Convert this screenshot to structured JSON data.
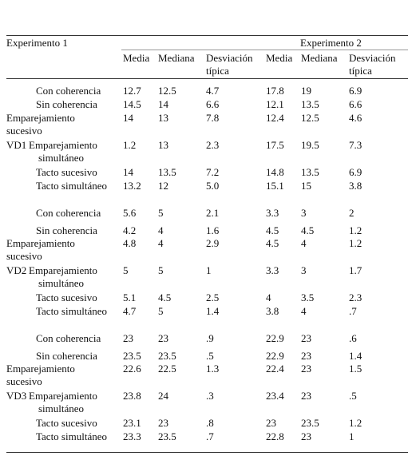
{
  "table": {
    "header": {
      "group_1": "Experimento 1",
      "group_2": "Experimento 2",
      "columns": [
        "Media",
        "Mediana",
        "Desviación típica",
        "Media",
        "Mediana",
        "Desviación típica"
      ]
    },
    "rows": [
      {
        "label": "Con coherencia",
        "cells": [
          "12.7",
          "12.5",
          "4.7",
          "17.8",
          "19",
          "6.9"
        ]
      },
      {
        "label": "Sin coherencia",
        "cells": [
          "14.5",
          "14",
          "6.6",
          "12.1",
          "13.5",
          "6.6"
        ]
      },
      {
        "label": "Emparejamiento sucesivo",
        "cells": [
          "14",
          "13",
          "7.8",
          "12.4",
          "12.5",
          "4.6"
        ]
      },
      {
        "group": "VD1",
        "label": "Emparejamiento simultáneo",
        "cells": [
          "1.2",
          "13",
          "2.3",
          "17.5",
          "19.5",
          "7.3"
        ]
      },
      {
        "label": "Tacto sucesivo",
        "cells": [
          "14",
          "13.5",
          "7.2",
          "14.8",
          "13.5",
          "6.9"
        ]
      },
      {
        "label": "Tacto simultáneo",
        "cells": [
          "13.2",
          "12",
          "5.0",
          "15.1",
          "15",
          "3.8"
        ]
      },
      {
        "label": "Con coherencia",
        "cells": [
          "5.6",
          "5",
          "2.1",
          "3.3",
          "3",
          "2"
        ]
      },
      {
        "label": "Sin coherencia",
        "cells": [
          "4.2",
          "4",
          "1.6",
          "4.5",
          "4.5",
          "1.2"
        ]
      },
      {
        "label": "Emparejamiento sucesivo",
        "cells": [
          "4.8",
          "4",
          "2.9",
          "4.5",
          "4",
          "1.2"
        ]
      },
      {
        "group": "VD2",
        "label": "Emparejamiento simultáneo",
        "cells": [
          "5",
          "5",
          "1",
          "3.3",
          "3",
          "1.7"
        ]
      },
      {
        "label": "Tacto sucesivo",
        "cells": [
          "5.1",
          "4.5",
          "2.5",
          "4",
          "3.5",
          "2.3"
        ]
      },
      {
        "label": "Tacto simultáneo",
        "cells": [
          "4.7",
          "5",
          "1.4",
          "3.8",
          "4",
          ".7"
        ]
      },
      {
        "label": "Con coherencia",
        "cells": [
          "23",
          "23",
          ".9",
          "22.9",
          "23",
          ".6"
        ]
      },
      {
        "label": "Sin coherencia",
        "cells": [
          "23.5",
          "23.5",
          ".5",
          "22.9",
          "23",
          "1.4"
        ]
      },
      {
        "label": "Emparejamiento sucesivo",
        "cells": [
          "22.6",
          "22.5",
          "1.3",
          "22.4",
          "23",
          "1.5"
        ]
      },
      {
        "group": "VD3",
        "label": "Emparejamiento simultáneo",
        "cells": [
          "23.8",
          "24",
          ".3",
          "23.4",
          "23",
          ".5"
        ]
      },
      {
        "label": "Tacto sucesivo",
        "cells": [
          "23.1",
          "23",
          ".8",
          "23",
          "23.5",
          "1.2"
        ]
      },
      {
        "label": "Tacto simultáneo",
        "cells": [
          "23.3",
          "23.5",
          ".7",
          "22.8",
          "23",
          "1"
        ]
      }
    ]
  }
}
